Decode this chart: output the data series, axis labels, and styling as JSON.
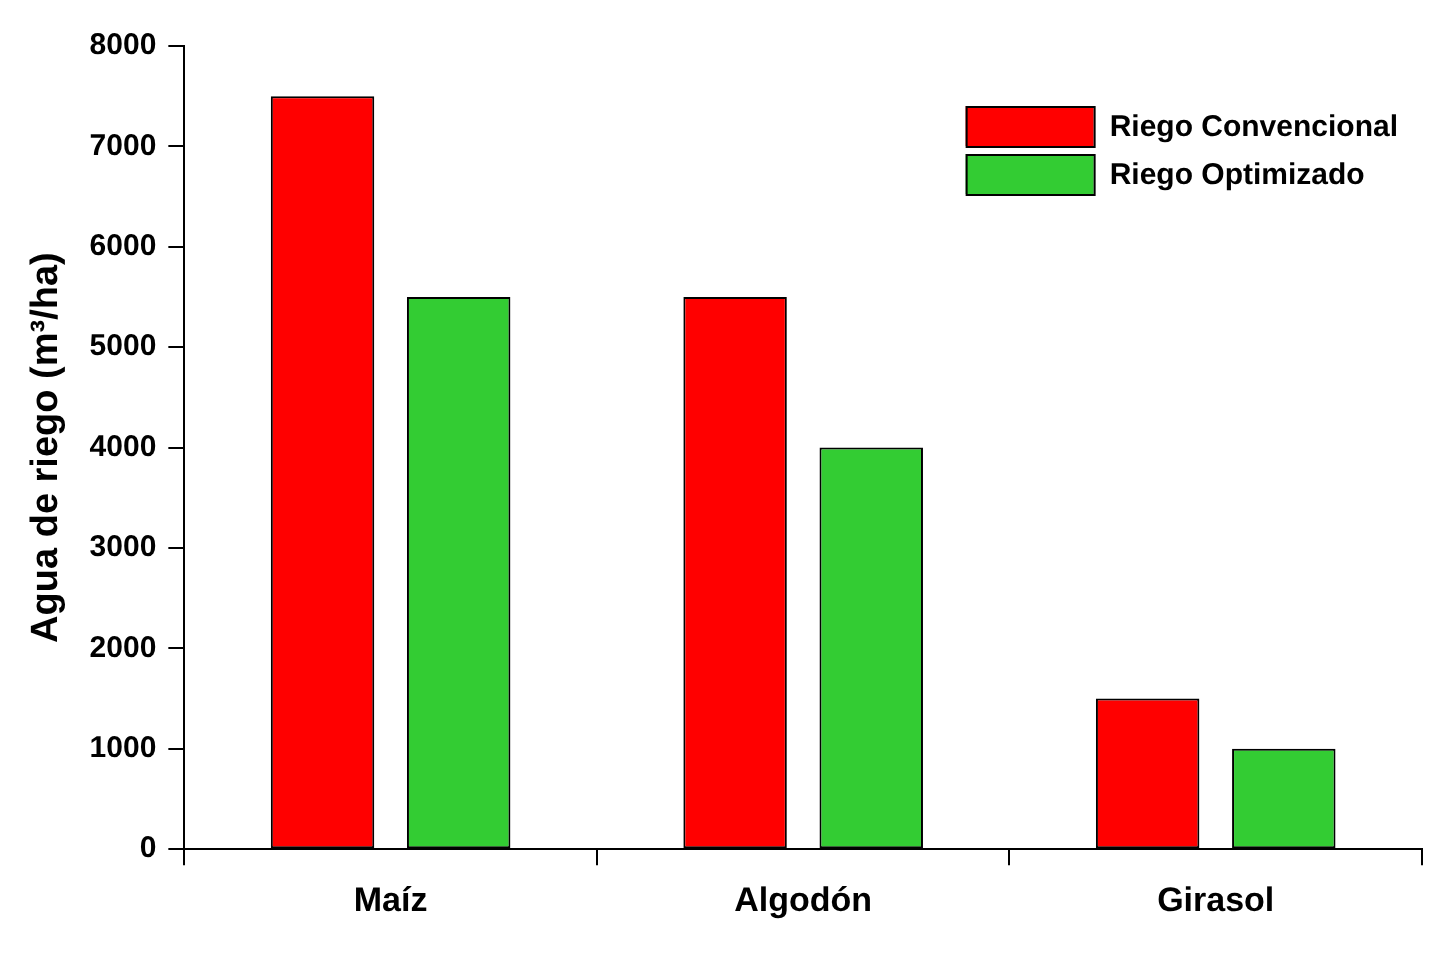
{
  "chart_data": {
    "type": "bar",
    "ylabel": "Agua de riego (m³/ha)",
    "categories": [
      "Maíz",
      "Algodón",
      "Girasol"
    ],
    "series": [
      {
        "name": "Riego Convencional",
        "color": "#ff0000",
        "values": [
          7500,
          5500,
          1500
        ]
      },
      {
        "name": "Riego Optimizado",
        "color": "#33cc33",
        "values": [
          5500,
          4000,
          1000
        ]
      }
    ],
    "ylim": [
      0,
      8000
    ],
    "yticks": [
      0,
      1000,
      2000,
      3000,
      4000,
      5000,
      6000,
      7000,
      8000
    ],
    "grid": false,
    "legend": "top right"
  }
}
